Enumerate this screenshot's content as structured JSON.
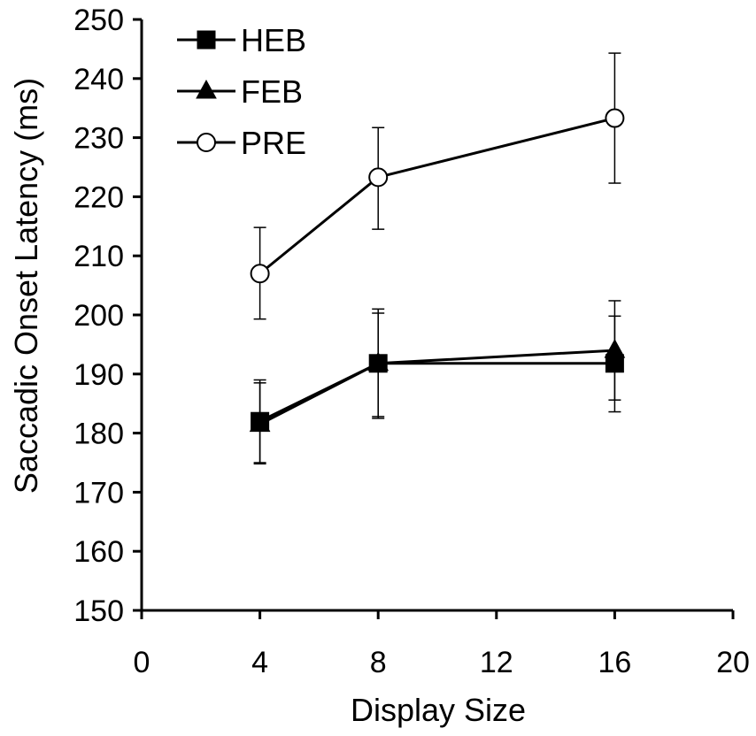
{
  "chart_data": {
    "type": "line",
    "title": "",
    "xlabel": "Display Size",
    "ylabel": "Saccadic Onset Latency (ms)",
    "xlim": [
      0,
      20
    ],
    "ylim": [
      150,
      250
    ],
    "xticks": [
      0,
      4,
      8,
      12,
      16,
      20
    ],
    "yticks": [
      150,
      160,
      170,
      180,
      190,
      200,
      210,
      220,
      230,
      240,
      250
    ],
    "grid": false,
    "legend": "top-left",
    "x": [
      4,
      8,
      16
    ],
    "series": [
      {
        "name": "HEB",
        "marker": "square-filled",
        "values": [
          182,
          191.8,
          191.8
        ],
        "err_low": [
          174.8,
          182.8,
          183.6
        ],
        "err_high": [
          189.0,
          200.3,
          199.8
        ]
      },
      {
        "name": "FEB",
        "marker": "triangle-filled",
        "values": [
          181.5,
          191.8,
          194.0
        ],
        "err_low": [
          175.0,
          182.5,
          185.6
        ],
        "err_high": [
          188.5,
          201.0,
          202.4
        ]
      },
      {
        "name": "PRE",
        "marker": "circle-open",
        "values": [
          207.0,
          223.3,
          233.3
        ],
        "err_low": [
          199.3,
          214.5,
          222.3
        ],
        "err_high": [
          214.8,
          231.7,
          244.3
        ]
      }
    ],
    "colors": {
      "line": "#000000",
      "marker_fill_open": "#ffffff"
    }
  }
}
